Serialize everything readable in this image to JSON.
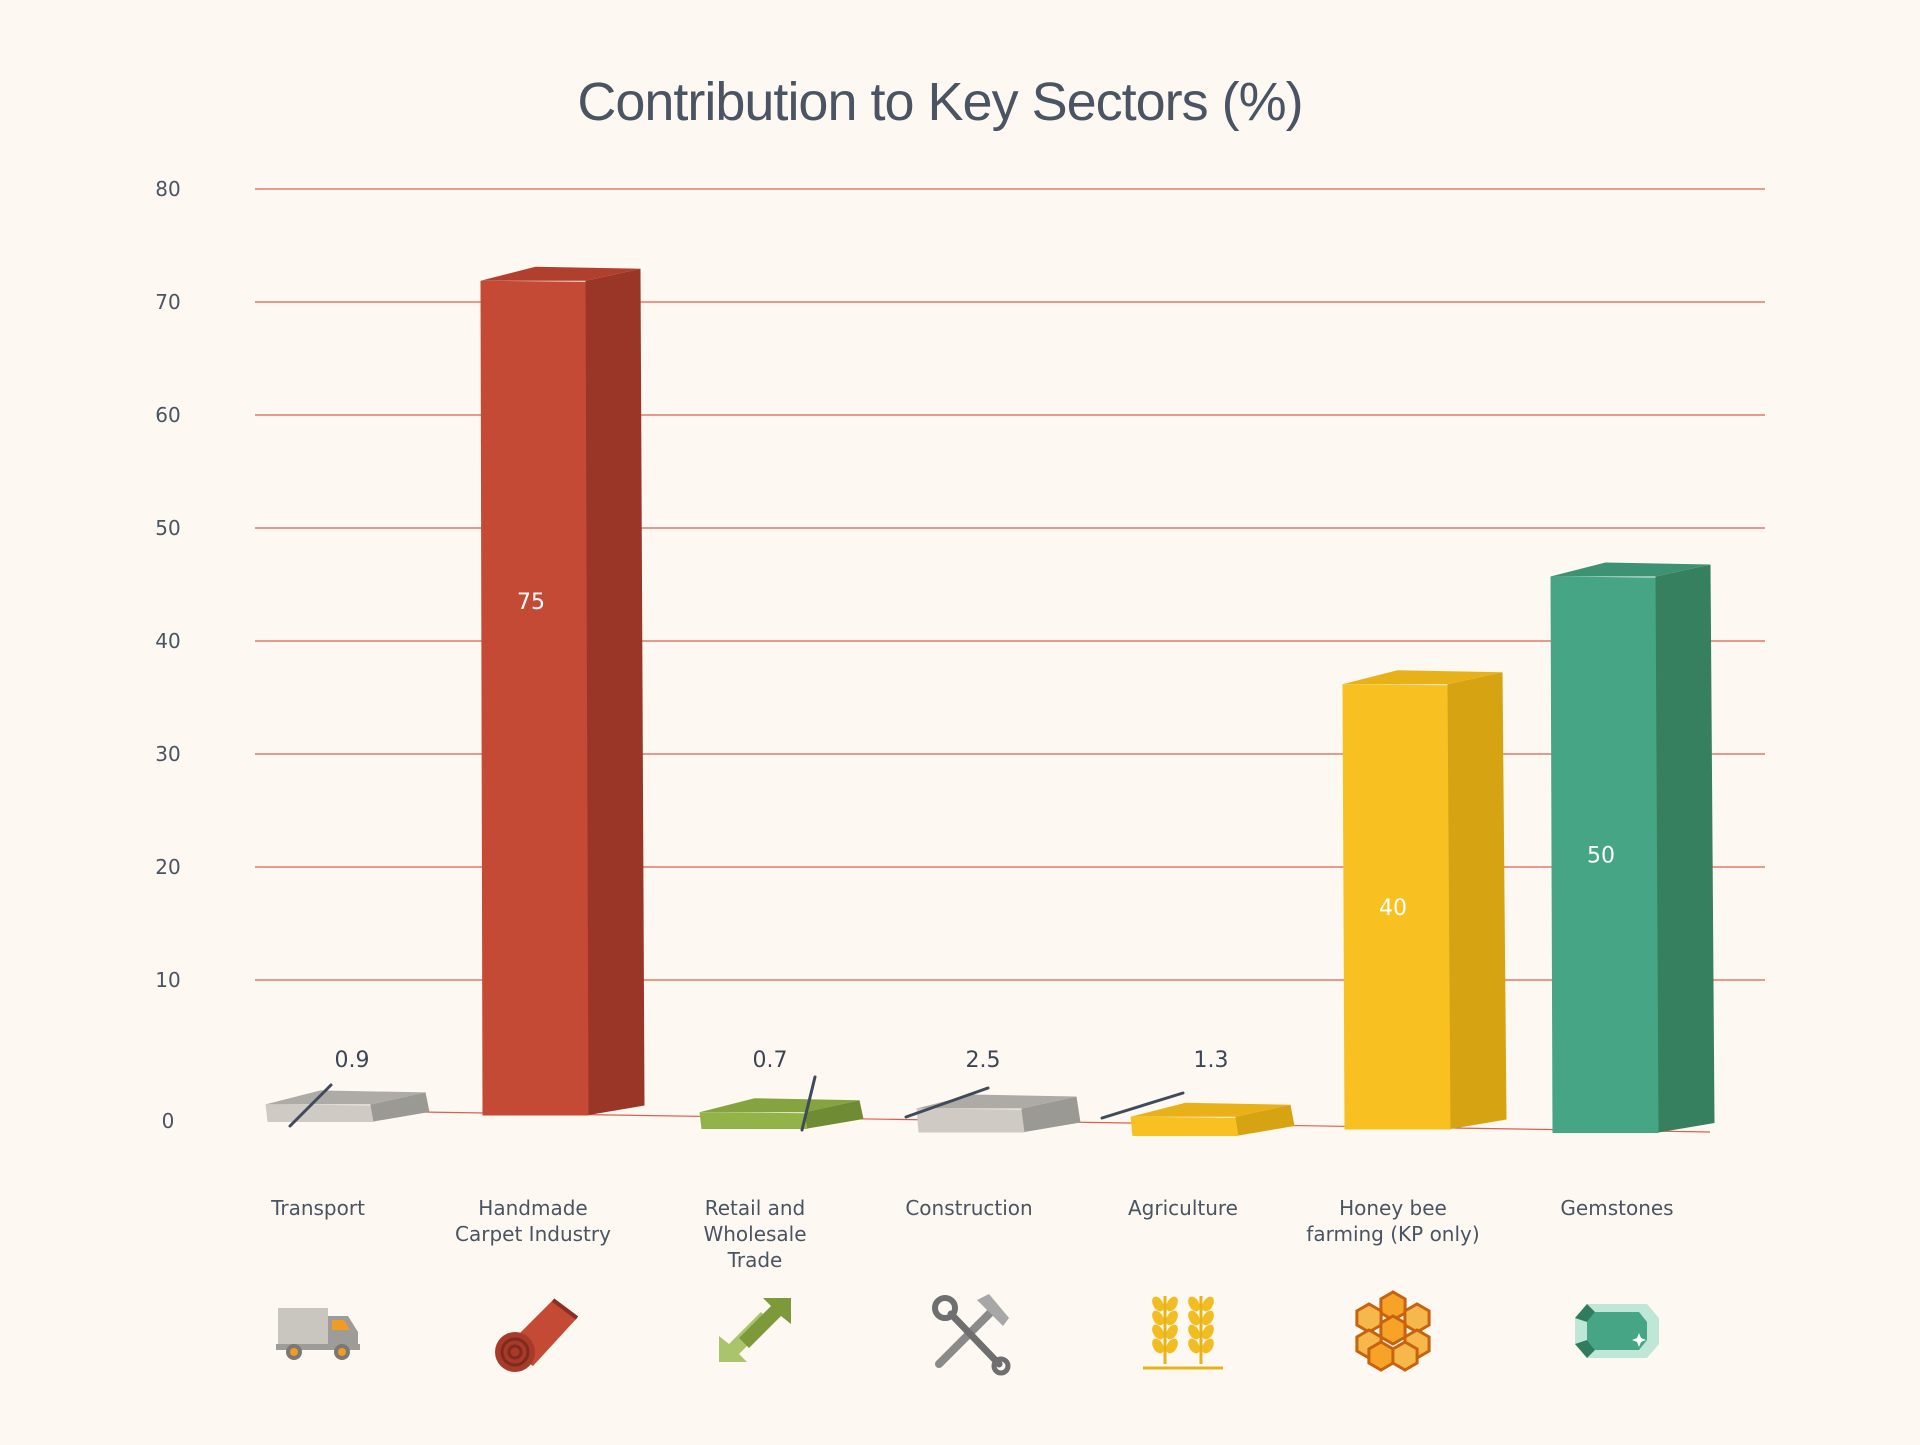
{
  "chart_data": {
    "type": "bar",
    "title": "Contribution to Key Sectors (%)",
    "xlabel": "",
    "ylabel": "",
    "ylim": [
      0,
      80
    ],
    "yticks": [
      0,
      10,
      20,
      30,
      40,
      50,
      60,
      70,
      80
    ],
    "grid": true,
    "categories": [
      {
        "lines": [
          "Transport"
        ],
        "icon": "truck-icon"
      },
      {
        "lines": [
          "Handmade",
          "Carpet Industry"
        ],
        "icon": "carpet-roll-icon"
      },
      {
        "lines": [
          "Retail and",
          "Wholesale",
          "Trade"
        ],
        "icon": "exchange-arrows-icon"
      },
      {
        "lines": [
          "Construction"
        ],
        "icon": "hammer-wrench-icon"
      },
      {
        "lines": [
          "Agriculture"
        ],
        "icon": "wheat-icon"
      },
      {
        "lines": [
          "Honey bee",
          "farming (KP only)"
        ],
        "icon": "honeycomb-icon"
      },
      {
        "lines": [
          "Gemstones"
        ],
        "icon": "gemstone-icon"
      }
    ],
    "values": [
      0.9,
      75,
      0.7,
      2.5,
      1.3,
      40,
      50
    ],
    "data_labels": [
      "0.9",
      "75",
      "0.7",
      "2.5",
      "1.3",
      "40",
      "50"
    ],
    "colors": [
      {
        "front": "#cfcbc4",
        "side": "#9b9994",
        "top": "#aeaba6"
      },
      {
        "front": "#c44a35",
        "side": "#9a3628",
        "top": "#b03f2d"
      },
      {
        "front": "#93b348",
        "side": "#6f8b33",
        "top": "#85a33e"
      },
      {
        "front": "#cfcbc4",
        "side": "#9b9994",
        "top": "#aeaba6"
      },
      {
        "front": "#f8c020",
        "side": "#d6a313",
        "top": "#e8b11a"
      },
      {
        "front": "#f8c020",
        "side": "#d6a313",
        "top": "#e8b11a"
      },
      {
        "front": "#46a584",
        "side": "#37805f",
        "top": "#3c9272"
      }
    ],
    "grid_color": "#d9604f",
    "text_color": "#4a5462"
  }
}
